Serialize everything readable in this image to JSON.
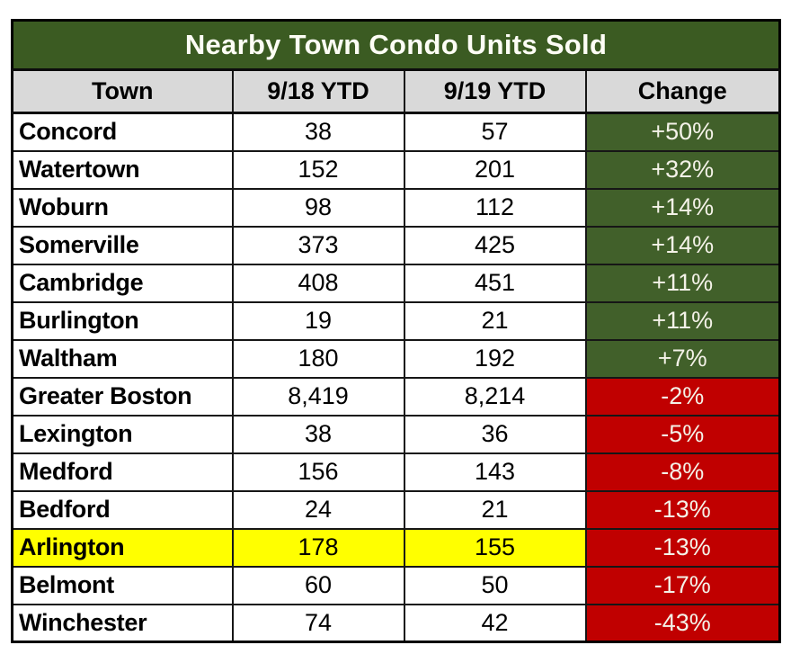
{
  "chart_data": {
    "type": "table",
    "title": "Nearby Town Condo Units Sold",
    "columns": [
      "Town",
      "9/18 YTD",
      "9/19 YTD",
      "Change"
    ],
    "rows": [
      {
        "town": "Concord",
        "ytd_2018": "38",
        "ytd_2019": "57",
        "change": "+50%",
        "direction": "up",
        "highlighted": false
      },
      {
        "town": "Watertown",
        "ytd_2018": "152",
        "ytd_2019": "201",
        "change": "+32%",
        "direction": "up",
        "highlighted": false
      },
      {
        "town": "Woburn",
        "ytd_2018": "98",
        "ytd_2019": "112",
        "change": "+14%",
        "direction": "up",
        "highlighted": false
      },
      {
        "town": "Somerville",
        "ytd_2018": "373",
        "ytd_2019": "425",
        "change": "+14%",
        "direction": "up",
        "highlighted": false
      },
      {
        "town": "Cambridge",
        "ytd_2018": "408",
        "ytd_2019": "451",
        "change": "+11%",
        "direction": "up",
        "highlighted": false
      },
      {
        "town": "Burlington",
        "ytd_2018": "19",
        "ytd_2019": "21",
        "change": "+11%",
        "direction": "up",
        "highlighted": false
      },
      {
        "town": "Waltham",
        "ytd_2018": "180",
        "ytd_2019": "192",
        "change": "+7%",
        "direction": "up",
        "highlighted": false
      },
      {
        "town": "Greater Boston",
        "ytd_2018": "8,419",
        "ytd_2019": "8,214",
        "change": "-2%",
        "direction": "down",
        "highlighted": false
      },
      {
        "town": "Lexington",
        "ytd_2018": "38",
        "ytd_2019": "36",
        "change": "-5%",
        "direction": "down",
        "highlighted": false
      },
      {
        "town": "Medford",
        "ytd_2018": "156",
        "ytd_2019": "143",
        "change": "-8%",
        "direction": "down",
        "highlighted": false
      },
      {
        "town": "Bedford",
        "ytd_2018": "24",
        "ytd_2019": "21",
        "change": "-13%",
        "direction": "down",
        "highlighted": false
      },
      {
        "town": "Arlington",
        "ytd_2018": "178",
        "ytd_2019": "155",
        "change": "-13%",
        "direction": "down",
        "highlighted": true
      },
      {
        "town": "Belmont",
        "ytd_2018": "60",
        "ytd_2019": "50",
        "change": "-17%",
        "direction": "down",
        "highlighted": false
      },
      {
        "town": "Winchester",
        "ytd_2018": "74",
        "ytd_2019": "42",
        "change": "-43%",
        "direction": "down",
        "highlighted": false
      }
    ],
    "colors": {
      "title_background": "#3B5B22",
      "positive_change_background": "#41602A",
      "negative_change_background": "#C00000",
      "highlight_background": "#FFFF00",
      "header_background": "#D9D9D9",
      "colored_cell_text": "#F4F2E8"
    },
    "layout_hints": {
      "title_position": "top-merged-row",
      "grid": true,
      "change_column_colored_by_sign": true,
      "highlighted_row": "Arlington"
    }
  }
}
